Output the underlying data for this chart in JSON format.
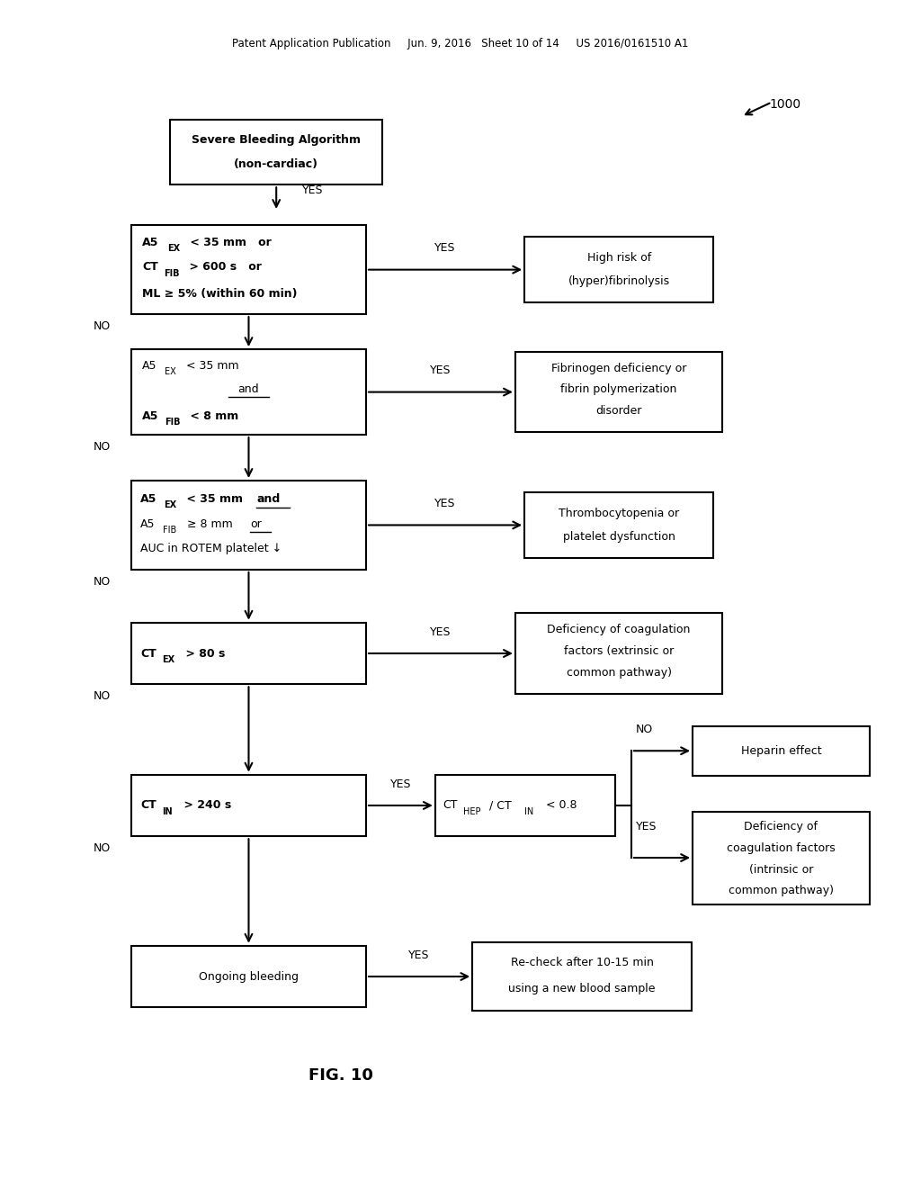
{
  "bg_color": "#ffffff",
  "header_text": "Patent Application Publication     Jun. 9, 2016   Sheet 10 of 14     US 2016/0161510 A1",
  "fig_label": "FIG. 10",
  "ref_num": "1000"
}
